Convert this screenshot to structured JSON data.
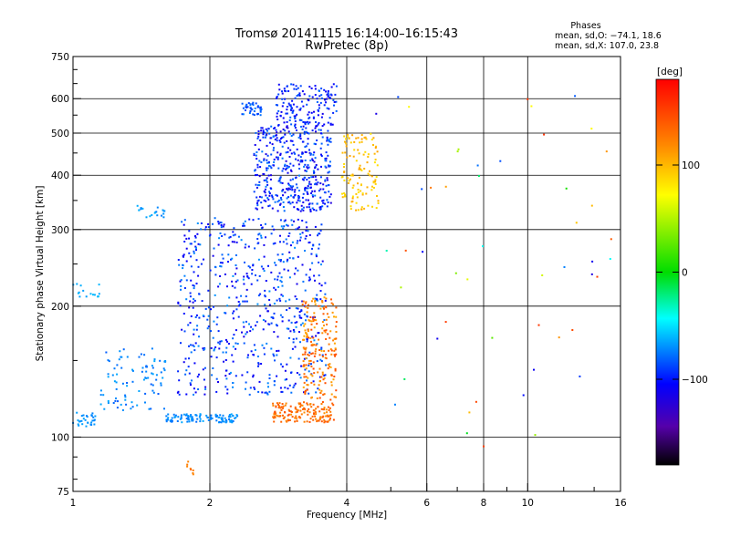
{
  "chart_data": {
    "type": "scatter",
    "title": "Tromsø 20141115 16:14:00–16:15:43",
    "subtitle": "RwPretec (8p)",
    "xlabel": "Frequency [MHz]",
    "ylabel": "Stationary phase Virtual Height [km]",
    "x_scale": "log",
    "y_scale": "log",
    "xlim": [
      1,
      16
    ],
    "ylim": [
      75,
      750
    ],
    "x_ticks": [
      1,
      2,
      4,
      6,
      8,
      10,
      16
    ],
    "x_tick_labels": [
      "1",
      "2",
      "4",
      "6",
      "8",
      "10",
      "16"
    ],
    "x_minor_ticks": [
      3,
      5,
      7,
      9,
      12,
      14
    ],
    "y_ticks": [
      75,
      100,
      200,
      300,
      400,
      500,
      600,
      750
    ],
    "y_tick_labels": [
      "75",
      "100",
      "200",
      "300",
      "400",
      "500",
      "600",
      "750"
    ],
    "grid": true,
    "info_box": {
      "title": "Phases",
      "line_o": "mean, sd,O: −74.1, 18.6",
      "line_x": "mean, sd,X: 107.0, 23.8"
    },
    "colorbar": {
      "label": "[deg]",
      "range": [
        -180,
        180
      ],
      "ticks": [
        100,
        0,
        -100
      ],
      "tick_labels": [
        "100",
        "0",
        "−100"
      ],
      "colormap": "rainbow"
    },
    "clusters": [
      {
        "f": [
          1.0,
          1.12
        ],
        "h": [
          105,
          115
        ],
        "phase": [
          -70,
          -60
        ],
        "n": 30
      },
      {
        "f": [
          1.15,
          1.6
        ],
        "h": [
          115,
          160
        ],
        "phase": [
          -80,
          -60
        ],
        "n": 90
      },
      {
        "f": [
          1.6,
          2.3
        ],
        "h": [
          108,
          113
        ],
        "phase": [
          -75,
          -60
        ],
        "n": 110
      },
      {
        "f": [
          1.7,
          3.6
        ],
        "h": [
          125,
          320
        ],
        "phase": [
          -110,
          -65
        ],
        "n": 650
      },
      {
        "f": [
          2.5,
          3.7
        ],
        "h": [
          330,
          520
        ],
        "phase": [
          -115,
          -70
        ],
        "n": 450
      },
      {
        "f": [
          2.8,
          3.8
        ],
        "h": [
          520,
          650
        ],
        "phase": [
          -110,
          -75
        ],
        "n": 160
      },
      {
        "f": [
          2.35,
          2.6
        ],
        "h": [
          550,
          590
        ],
        "phase": [
          -90,
          -70
        ],
        "n": 40
      },
      {
        "f": [
          2.75,
          3.75
        ],
        "h": [
          108,
          120
        ],
        "phase": [
          115,
          145
        ],
        "n": 150
      },
      {
        "f": [
          3.2,
          3.8
        ],
        "h": [
          120,
          210
        ],
        "phase": [
          105,
          150
        ],
        "n": 200
      },
      {
        "f": [
          3.9,
          4.7
        ],
        "h": [
          330,
          500
        ],
        "phase": [
          80,
          110
        ],
        "n": 120
      },
      {
        "f": [
          1.0,
          1.15
        ],
        "h": [
          210,
          225
        ],
        "phase": [
          -65,
          -55
        ],
        "n": 15
      },
      {
        "f": [
          1.35,
          1.6
        ],
        "h": [
          320,
          345
        ],
        "phase": [
          -70,
          -55
        ],
        "n": 20
      },
      {
        "f": [
          1.75,
          1.85
        ],
        "h": [
          82,
          88
        ],
        "phase": [
          120,
          140
        ],
        "n": 8
      },
      {
        "f": [
          4.5,
          15.5
        ],
        "h": [
          90,
          660
        ],
        "phase": [
          -120,
          160
        ],
        "n": 50
      }
    ]
  }
}
